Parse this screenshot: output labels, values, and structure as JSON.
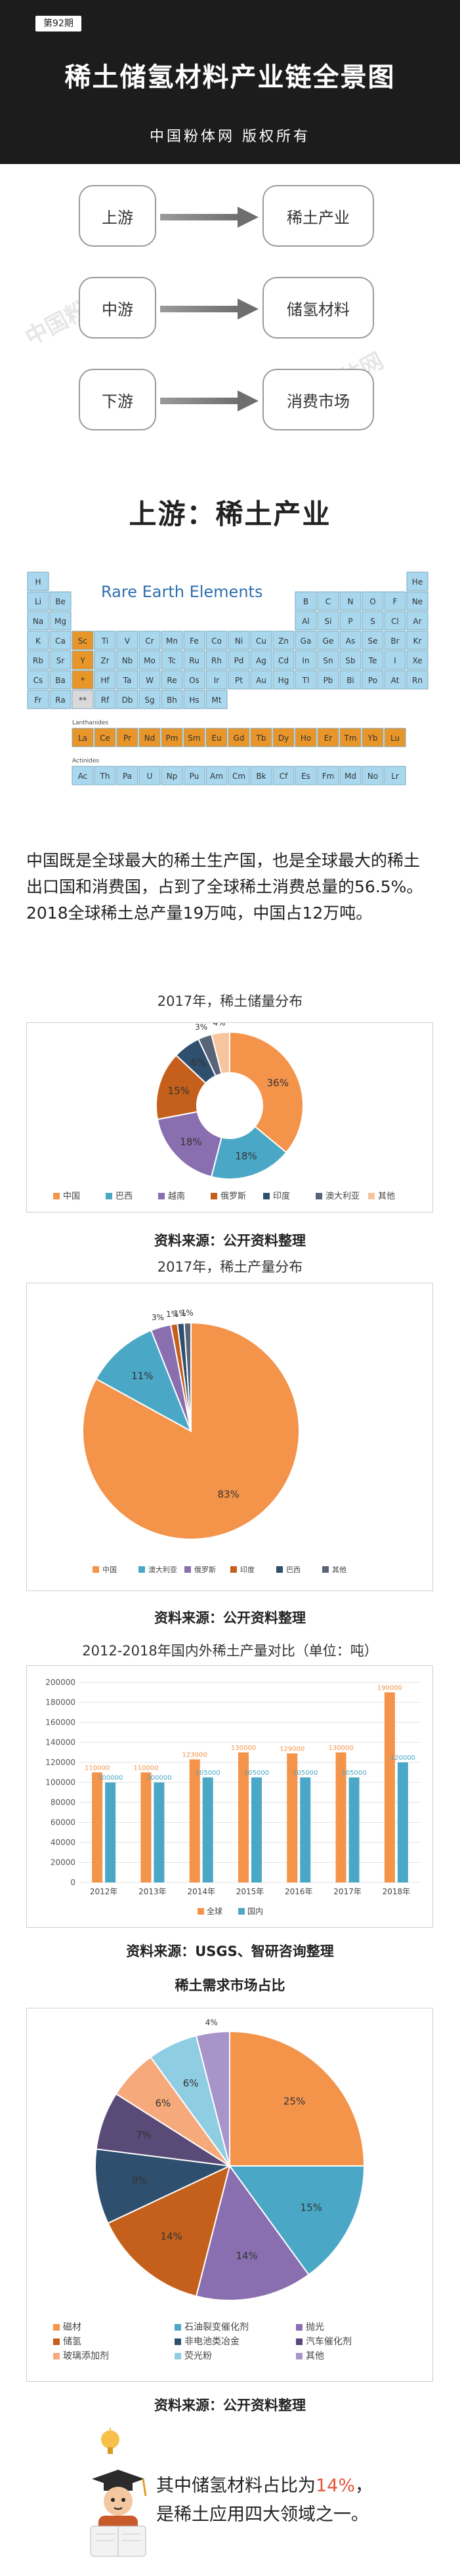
{
  "header": {
    "issue": "第92期",
    "title": "稀土储氢材料产业链全景图",
    "copyright": "中国粉体网   版权所有"
  },
  "flow": {
    "rows": [
      {
        "left": "上游",
        "right": "稀土产业"
      },
      {
        "left": "中游",
        "right": "储氢材料"
      },
      {
        "left": "下游",
        "right": "消费市场"
      }
    ]
  },
  "watermark": "中国粉体网",
  "colors": {
    "orange": "#f4934a",
    "blue": "#4aa8c6",
    "purple": "#8a6fb0",
    "rust": "#c4601c",
    "navy": "#2f4f6e",
    "slate": "#5a6478",
    "peach": "#f6c59e",
    "rare_earth_cell": "#e8962a",
    "table_cell": "#a9d8ee"
  },
  "upstream": {
    "title": "上游：稀土产业",
    "periodic_table": {
      "heading": "Rare Earth Elements",
      "period1": [
        "H",
        "He"
      ],
      "period2": [
        "Li",
        "Be",
        "B",
        "C",
        "N",
        "O",
        "F",
        "Ne"
      ],
      "period3": [
        "Na",
        "Mg",
        "Al",
        "Si",
        "P",
        "S",
        "Cl",
        "Ar"
      ],
      "period4": [
        "K",
        "Ca",
        "Sc",
        "Ti",
        "V",
        "Cr",
        "Mn",
        "Fe",
        "Co",
        "Ni",
        "Cu",
        "Zn",
        "Ga",
        "Ge",
        "As",
        "Se",
        "Br",
        "Kr"
      ],
      "period5": [
        "Rb",
        "Sr",
        "Y",
        "Zr",
        "Nb",
        "Mo",
        "Tc",
        "Ru",
        "Rh",
        "Pd",
        "Ag",
        "Cd",
        "In",
        "Sn",
        "Sb",
        "Te",
        "I",
        "Xe"
      ],
      "period6": [
        "Cs",
        "Ba",
        "*",
        "Hf",
        "Ta",
        "W",
        "Re",
        "Os",
        "Ir",
        "Pt",
        "Au",
        "Hg",
        "Tl",
        "Pb",
        "Bi",
        "Po",
        "At",
        "Rn"
      ],
      "period7": [
        "Fr",
        "Ra",
        "**",
        "Rf",
        "Db",
        "Sg",
        "Bh",
        "Hs",
        "Mt"
      ],
      "lanthanides_label": "Lanthanides",
      "lanthanides": [
        "La",
        "Ce",
        "Pr",
        "Nd",
        "Pm",
        "Sm",
        "Eu",
        "Gd",
        "Tb",
        "Dy",
        "Ho",
        "Er",
        "Tm",
        "Yb",
        "Lu"
      ],
      "actinides_label": "Actinides",
      "actinides": [
        "Ac",
        "Th",
        "Pa",
        "U",
        "Np",
        "Pu",
        "Am",
        "Cm",
        "Bk",
        "Cf",
        "Es",
        "Fm",
        "Md",
        "No",
        "Lr"
      ]
    },
    "paragraph": "中国既是全球最大的稀土生产国，也是全球最大的稀土出口国和消费国，占到了全球稀土消费总量的56.5%。2018全球稀土总产量19万吨，中国占12万吨。"
  },
  "source_text": "资料来源：公开资料整理",
  "source_usgs": "资料来源：USGS、智研咨询整理",
  "chart_data": [
    {
      "type": "pie",
      "title": "2017年，稀土储量分布",
      "labels": [
        "中国",
        "巴西",
        "越南",
        "俄罗斯",
        "印度",
        "澳大利亚",
        "其他"
      ],
      "values": [
        36,
        18,
        18,
        15,
        6,
        3,
        4
      ],
      "colors": [
        "#f4934a",
        "#4aa8c6",
        "#8a6fb0",
        "#c4601c",
        "#2f4f6e",
        "#5a6478",
        "#f6c59e"
      ],
      "value_labels": [
        "36%",
        "18%",
        "18%",
        "15%",
        "6%",
        "3%",
        "4%"
      ],
      "legend": "bottom"
    },
    {
      "type": "pie",
      "title": "2017年，稀土产量分布",
      "labels": [
        "中国",
        "澳大利亚",
        "俄罗斯",
        "印度",
        "巴西",
        "其他"
      ],
      "values": [
        83,
        11,
        3,
        1,
        1,
        1
      ],
      "colors": [
        "#f4934a",
        "#4aa8c6",
        "#8a6fb0",
        "#c4601c",
        "#2f4f6e",
        "#5a6478"
      ],
      "value_labels": [
        "83%",
        "11%",
        "3%",
        "1%",
        "1%",
        "1%"
      ],
      "legend": "bottom"
    },
    {
      "type": "bar",
      "title": "2012-2018年国内外稀土产量对比（单位：吨）",
      "categories": [
        "2012年",
        "2013年",
        "2014年",
        "2015年",
        "2016年",
        "2017年",
        "2018年"
      ],
      "series": [
        {
          "name": "全球",
          "values": [
            110000,
            110000,
            123000,
            130000,
            129000,
            130000,
            190000
          ],
          "color": "#f4934a"
        },
        {
          "name": "国内",
          "values": [
            100000,
            100000,
            105000,
            105000,
            105000,
            105000,
            120000
          ],
          "color": "#4aa8c6"
        }
      ],
      "value_labels": {
        "全球": [
          "110000",
          "110000",
          "123000",
          "130000",
          "129000",
          "130000",
          "190000"
        ],
        "国内": [
          "100000",
          "100000",
          "105000",
          "105000",
          "105000",
          "105000",
          "120000"
        ]
      },
      "yticks": [
        "0",
        "20000",
        "40000",
        "60000",
        "80000",
        "100000",
        "120000",
        "140000",
        "160000",
        "180000",
        "200000"
      ],
      "ylim": [
        0,
        200000
      ],
      "grid": true,
      "legend": "bottom"
    },
    {
      "type": "pie",
      "title": "稀土需求市场占比",
      "labels": [
        "磁材",
        "石油裂变催化剂",
        "抛光",
        "储氢",
        "非电池类冶金",
        "汽车催化剂",
        "玻璃添加剂",
        "荧光粉",
        "其他"
      ],
      "values": [
        25,
        15,
        14,
        14,
        9,
        7,
        6,
        6,
        4
      ],
      "colors": [
        "#f4934a",
        "#4aa8c6",
        "#8a6fb0",
        "#c4601c",
        "#2f4f6e",
        "#5a4a78",
        "#f6a97a",
        "#8fcde3",
        "#a794c8"
      ],
      "value_labels": [
        "25%",
        "15%",
        "14%",
        "14%",
        "9%",
        "7%",
        "6%",
        "6%",
        "4%"
      ],
      "legend": "bottom"
    }
  ],
  "closing": {
    "line1_before": "其中储氢材料占比为",
    "line1_value": "14%",
    "line1_after": "，",
    "line2": "是稀土应用四大领域之一。"
  }
}
